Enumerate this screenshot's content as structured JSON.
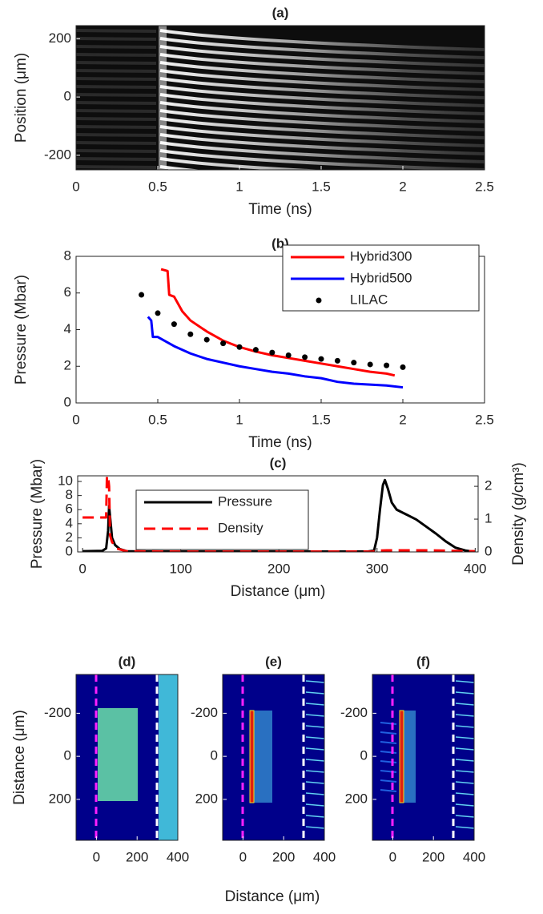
{
  "chart_data": [
    {
      "type": "image",
      "title": "(a)",
      "xlabel": "Time (ns)",
      "ylabel": "Position (μm)",
      "xlim": [
        0,
        2.5
      ],
      "ylim": [
        -250,
        245
      ],
      "xticks": [
        0,
        0.5,
        1,
        1.5,
        2,
        2.5
      ],
      "yticks": [
        -200,
        0,
        200
      ]
    },
    {
      "type": "line",
      "title": "(b)",
      "xlabel": "Time (ns)",
      "ylabel": "Pressure (Mbar)",
      "xlim": [
        0,
        2.5
      ],
      "ylim": [
        0,
        8
      ],
      "xticks": [
        0,
        0.5,
        1,
        1.5,
        2,
        2.5
      ],
      "yticks": [
        0,
        2,
        4,
        6,
        8
      ],
      "legend": "upper right",
      "series": [
        {
          "name": "Hybrid300",
          "color": "#ff0000",
          "x": [
            0.52,
            0.56,
            0.57,
            0.6,
            0.65,
            0.7,
            0.8,
            0.9,
            1.0,
            1.1,
            1.2,
            1.3,
            1.4,
            1.5,
            1.6,
            1.7,
            1.8,
            1.9,
            1.95
          ],
          "values": [
            7.3,
            7.2,
            5.9,
            5.8,
            5.0,
            4.5,
            3.9,
            3.4,
            3.05,
            2.8,
            2.6,
            2.45,
            2.3,
            2.15,
            2.0,
            1.85,
            1.7,
            1.6,
            1.5
          ]
        },
        {
          "name": "Hybrid500",
          "color": "#0000ff",
          "x": [
            0.44,
            0.46,
            0.47,
            0.5,
            0.6,
            0.7,
            0.8,
            0.9,
            1.0,
            1.1,
            1.2,
            1.3,
            1.4,
            1.5,
            1.6,
            1.7,
            1.8,
            1.9,
            2.0
          ],
          "values": [
            4.7,
            4.5,
            3.6,
            3.6,
            3.1,
            2.7,
            2.4,
            2.2,
            2.0,
            1.85,
            1.7,
            1.6,
            1.45,
            1.35,
            1.15,
            1.05,
            1.0,
            0.95,
            0.85
          ]
        },
        {
          "name": "LILAC",
          "color": "#000000",
          "marker": "dot",
          "x": [
            0.4,
            0.5,
            0.6,
            0.7,
            0.8,
            0.9,
            1.0,
            1.1,
            1.2,
            1.3,
            1.4,
            1.5,
            1.6,
            1.7,
            1.8,
            1.9,
            2.0
          ],
          "values": [
            5.9,
            4.9,
            4.3,
            3.75,
            3.45,
            3.25,
            3.05,
            2.9,
            2.75,
            2.6,
            2.5,
            2.4,
            2.3,
            2.2,
            2.1,
            2.05,
            1.95
          ]
        }
      ]
    },
    {
      "type": "line",
      "title": "(c)",
      "xlabel": "Distance (μm)",
      "ylabel": "Pressure (Mbar)",
      "y2label": "Density (g/cm³)",
      "xlim": [
        -5,
        403
      ],
      "ylim": [
        0,
        10.8
      ],
      "y2lim": [
        0,
        2.32
      ],
      "xticks": [
        0,
        100,
        200,
        300,
        400
      ],
      "yticks": [
        0,
        2,
        4,
        6,
        8,
        10
      ],
      "y2ticks": [
        0,
        1,
        2
      ],
      "legend": "upper left",
      "series": [
        {
          "name": "Pressure",
          "color": "#000000",
          "x": [
            0,
            20,
            24,
            26,
            27,
            28,
            30,
            33,
            38,
            45,
            60,
            290,
            297,
            300,
            303,
            306,
            308,
            311,
            315,
            320,
            330,
            340,
            350,
            360,
            370,
            380,
            390,
            395
          ],
          "values": [
            0.1,
            0.15,
            0.5,
            3,
            6.5,
            5,
            2,
            1,
            0.4,
            0.1,
            0.05,
            0.05,
            0.2,
            2,
            6,
            9.5,
            10.2,
            9,
            7,
            6,
            5.3,
            4.6,
            3.6,
            2.6,
            1.5,
            0.6,
            0.2,
            0.1
          ]
        },
        {
          "name": "Density",
          "color": "#ff0000",
          "dash": true,
          "axis": "y2",
          "x": [
            0,
            24,
            25,
            27,
            28,
            30,
            35,
            45,
            100,
            295,
            300,
            310,
            350,
            400
          ],
          "values": [
            1.05,
            1.05,
            2.6,
            2.0,
            0.5,
            0.3,
            0.1,
            0.02,
            0.01,
            0.01,
            0.04,
            0.05,
            0.05,
            0.02
          ]
        }
      ]
    },
    {
      "type": "image",
      "title": "(d)",
      "ylabel": "Distance (μm)",
      "xlim": [
        -100,
        400
      ],
      "ylim": [
        -380,
        390
      ],
      "yreverse": true,
      "xticks": [
        0,
        200,
        400
      ],
      "yticks": [
        -200,
        0,
        200
      ]
    },
    {
      "type": "image",
      "title": "(e)",
      "xlim": [
        -100,
        400
      ],
      "ylim": [
        -380,
        390
      ],
      "yreverse": true,
      "xticks": [
        0,
        200,
        400
      ],
      "yticks": [
        -200,
        0,
        200
      ]
    },
    {
      "type": "image",
      "title": "(f)",
      "xlim": [
        -100,
        400
      ],
      "ylim": [
        -380,
        390
      ],
      "yreverse": true,
      "xticks": [
        0,
        200,
        400
      ],
      "yticks": [
        -200,
        0,
        200
      ]
    }
  ],
  "figure_xlabel": "Distance (μm)"
}
